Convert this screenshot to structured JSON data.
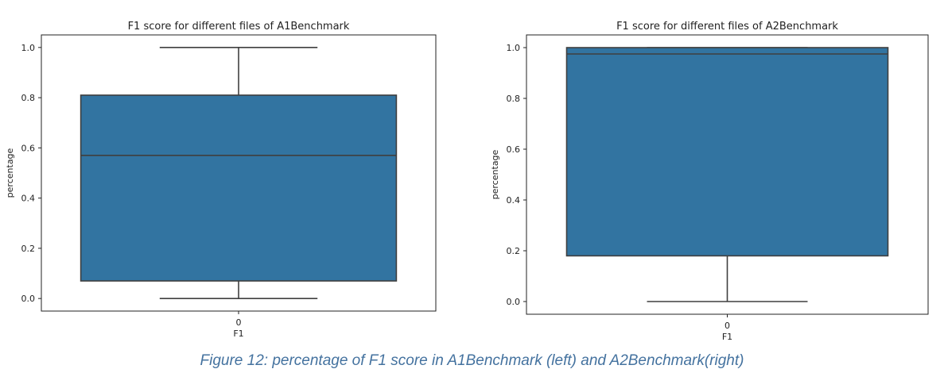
{
  "chart_data": [
    {
      "type": "box",
      "title": "F1 score for different files of A1Benchmark",
      "xlabel": "F1",
      "ylabel": "percentage",
      "categories": [
        "0"
      ],
      "ylim": [
        -0.05,
        1.05
      ],
      "yticks": [
        0.0,
        0.2,
        0.4,
        0.6,
        0.8,
        1.0
      ],
      "ytick_labels": [
        "0.0",
        "0.2",
        "0.4",
        "0.6",
        "0.8",
        "1.0"
      ],
      "box": {
        "min": 0.0,
        "q1": 0.07,
        "median": 0.57,
        "q3": 0.81,
        "max": 1.0
      },
      "color": "#3274a1",
      "grid": false
    },
    {
      "type": "box",
      "title": "F1 score for different files of A2Benchmark",
      "xlabel": "F1",
      "ylabel": "percentage",
      "categories": [
        "0"
      ],
      "ylim": [
        -0.05,
        1.05
      ],
      "yticks": [
        0.0,
        0.2,
        0.4,
        0.6,
        0.8,
        1.0
      ],
      "ytick_labels": [
        "0.0",
        "0.2",
        "0.4",
        "0.6",
        "0.8",
        "1.0"
      ],
      "box": {
        "min": 0.0,
        "q1": 0.18,
        "median": 0.975,
        "q3": 1.0,
        "max": 1.0
      },
      "color": "#3274a1",
      "grid": false
    }
  ],
  "caption": "Figure 12: percentage of F1 score in A1Benchmark (left) and A2Benchmark(right)"
}
